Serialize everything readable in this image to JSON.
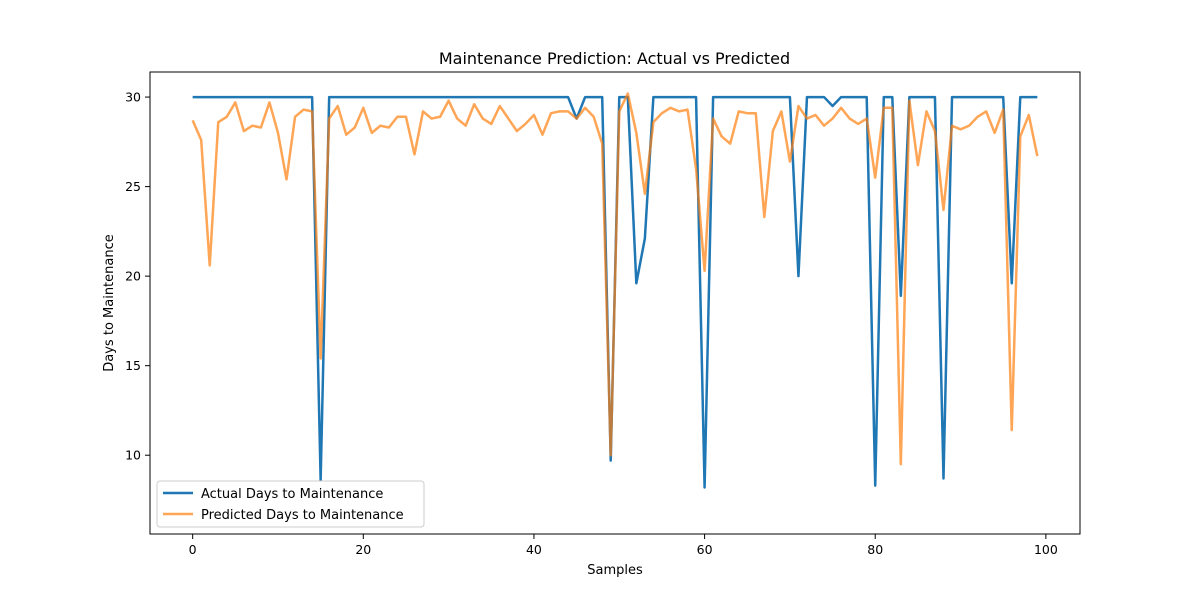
{
  "chart_data": {
    "type": "line",
    "title": "Maintenance Prediction: Actual vs Predicted",
    "xlabel": "Samples",
    "ylabel": "Days to Maintenance",
    "xlim": [
      -5.0,
      104.0
    ],
    "ylim": [
      5.6,
      31.4
    ],
    "xticks": [
      0,
      20,
      40,
      60,
      80,
      100
    ],
    "yticks": [
      10,
      15,
      20,
      25,
      30
    ],
    "grid": false,
    "legend_position": "lower-left",
    "x": [
      0,
      1,
      2,
      3,
      4,
      5,
      6,
      7,
      8,
      9,
      10,
      11,
      12,
      13,
      14,
      15,
      16,
      17,
      18,
      19,
      20,
      21,
      22,
      23,
      24,
      25,
      26,
      27,
      28,
      29,
      30,
      31,
      32,
      33,
      34,
      35,
      36,
      37,
      38,
      39,
      40,
      41,
      42,
      43,
      44,
      45,
      46,
      47,
      48,
      49,
      50,
      51,
      52,
      53,
      54,
      55,
      56,
      57,
      58,
      59,
      60,
      61,
      62,
      63,
      64,
      65,
      66,
      67,
      68,
      69,
      70,
      71,
      72,
      73,
      74,
      75,
      76,
      77,
      78,
      79,
      80,
      81,
      82,
      83,
      84,
      85,
      86,
      87,
      88,
      89,
      90,
      91,
      92,
      93,
      94,
      95,
      96,
      97,
      98,
      99
    ],
    "series": [
      {
        "name": "Actual Days to Maintenance",
        "color": "#1f77b4",
        "values": [
          30,
          30,
          30,
          30,
          30,
          30,
          30,
          30,
          30,
          30,
          30,
          30,
          30,
          30,
          30,
          8.6,
          30,
          30,
          30,
          30,
          30,
          30,
          30,
          30,
          30,
          30,
          30,
          30,
          30,
          30,
          30,
          30,
          30,
          30,
          30,
          30,
          30,
          30,
          30,
          30,
          30,
          30,
          30,
          30,
          30,
          28.8,
          30,
          30,
          30,
          9.7,
          30,
          30,
          19.6,
          22.1,
          30,
          30,
          30,
          30,
          30,
          30,
          8.2,
          30,
          30,
          30,
          30,
          30,
          30,
          30,
          30,
          30,
          30,
          20.0,
          30,
          30,
          30,
          29.5,
          30,
          30,
          30,
          30,
          8.3,
          30,
          30,
          18.9,
          30,
          30,
          30,
          30,
          8.7,
          30,
          30,
          30,
          30,
          30,
          30,
          30,
          19.6,
          30,
          30,
          30
        ]
      },
      {
        "name": "Predicted Days to Maintenance",
        "color": "#ff7f0e",
        "values": [
          28.7,
          27.6,
          20.6,
          28.6,
          28.9,
          29.7,
          28.1,
          28.4,
          28.3,
          29.7,
          28.0,
          25.4,
          28.9,
          29.3,
          29.2,
          15.4,
          28.8,
          29.5,
          27.9,
          28.3,
          29.4,
          28.0,
          28.4,
          28.3,
          28.9,
          28.9,
          26.8,
          29.2,
          28.8,
          28.9,
          29.8,
          28.8,
          28.4,
          29.6,
          28.8,
          28.5,
          29.5,
          28.8,
          28.1,
          28.5,
          29.0,
          27.9,
          29.1,
          29.2,
          29.2,
          28.8,
          29.4,
          28.9,
          27.4,
          10.0,
          29.2,
          30.2,
          28.0,
          24.6,
          28.6,
          29.1,
          29.4,
          29.2,
          29.3,
          26.0,
          20.3,
          28.8,
          27.8,
          27.4,
          29.2,
          29.1,
          29.1,
          23.3,
          28.1,
          29.2,
          26.4,
          29.5,
          28.8,
          29.0,
          28.4,
          28.8,
          29.4,
          28.8,
          28.5,
          28.8,
          25.5,
          29.4,
          29.4,
          9.5,
          29.8,
          26.2,
          29.2,
          28.1,
          23.7,
          28.4,
          28.2,
          28.4,
          28.9,
          29.2,
          28.0,
          29.3,
          11.4,
          27.8,
          29.0,
          26.7
        ]
      }
    ]
  }
}
